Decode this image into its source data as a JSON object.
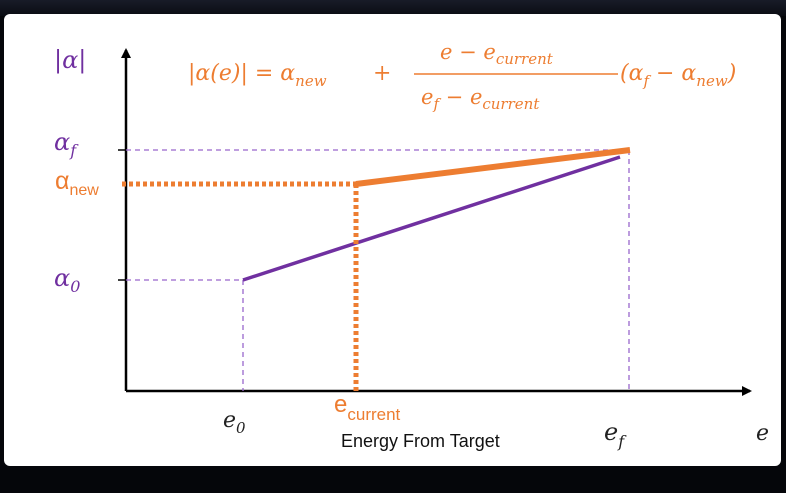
{
  "title_fragment": "",
  "y_axis_label": "|α|",
  "x_axis_label": "e",
  "x_axis_caption": "Energy From Target",
  "formula": {
    "lhs": "|α(e)| = α",
    "lhs_sub": "new",
    "plus": "+",
    "numerator": "e − e",
    "numerator_sub": "current",
    "denominator": "e",
    "denominator_sub_f": "f",
    "denominator_minus": " − e",
    "denominator_sub": "current",
    "rhs": "(α",
    "rhs_sub_f": "f",
    "rhs_mid": " − α",
    "rhs_sub": "new",
    "rhs_close": ")"
  },
  "y_ticks": {
    "alpha_f": "α",
    "alpha_f_sub": "f",
    "alpha_new": "α",
    "alpha_new_sub": "new",
    "alpha_0": "α",
    "alpha_0_sub": "0"
  },
  "x_ticks": {
    "e0": "e",
    "e0_sub": "0",
    "ecurrent": "e",
    "ecurrent_sub": "current",
    "ef": "e",
    "ef_sub": "f"
  },
  "colors": {
    "orange": "#ed7d31",
    "purple": "#7030a0",
    "guide": "#9966cc",
    "axis": "#000000"
  }
}
